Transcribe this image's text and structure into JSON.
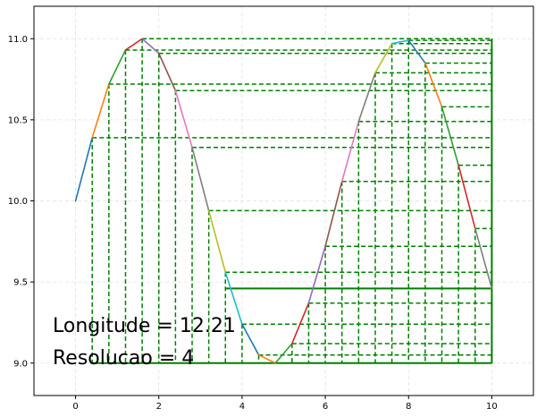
{
  "chart_data": {
    "type": "line",
    "title": "",
    "xlabel": "",
    "ylabel": "",
    "xlim": [
      -1,
      11
    ],
    "ylim": [
      8.8,
      11.2
    ],
    "grid": true,
    "x_ticks": [
      0,
      2,
      4,
      6,
      8,
      10
    ],
    "y_ticks": [
      9.0,
      9.5,
      10.0,
      10.5,
      11.0
    ],
    "x_tick_labels": [
      "0",
      "2",
      "4",
      "6",
      "8",
      "10"
    ],
    "y_tick_labels": [
      "9.0",
      "9.5",
      "10.0",
      "10.5",
      "11.0"
    ],
    "curve": {
      "x": [
        0,
        0.4,
        0.8,
        1.2,
        1.6,
        2.0,
        2.4,
        2.8,
        3.2,
        3.6,
        4.0,
        4.4,
        4.8,
        5.2,
        5.6,
        6.0,
        6.4,
        6.8,
        7.2,
        7.6,
        8.0,
        8.4,
        8.8,
        9.2,
        9.6,
        10.0
      ],
      "y": [
        10.0,
        10.39,
        10.72,
        10.93,
        11.0,
        10.91,
        10.68,
        10.33,
        9.94,
        9.56,
        9.24,
        9.05,
        9.0,
        9.12,
        9.37,
        9.72,
        10.12,
        10.49,
        10.79,
        10.97,
        10.99,
        10.85,
        10.58,
        10.22,
        9.83,
        9.46
      ],
      "segment_colors": [
        "#1f77b4",
        "#ff7f0e",
        "#2ca02c",
        "#d62728",
        "#9467bd",
        "#8c564b",
        "#e377c2",
        "#7f7f7f",
        "#bcbd22",
        "#17becf",
        "#1f77b4",
        "#ff7f0e",
        "#2ca02c",
        "#d62728",
        "#9467bd",
        "#8c564b",
        "#e377c2",
        "#7f7f7f",
        "#bcbd22",
        "#17becf",
        "#1f77b4",
        "#ff7f0e",
        "#2ca02c",
        "#d62728",
        "#7f7f7f"
      ]
    },
    "right_edge_x": 10,
    "grid_color": "#008000",
    "annotations": [
      "Longitude = 12.21",
      "Resolucao = 4"
    ]
  }
}
